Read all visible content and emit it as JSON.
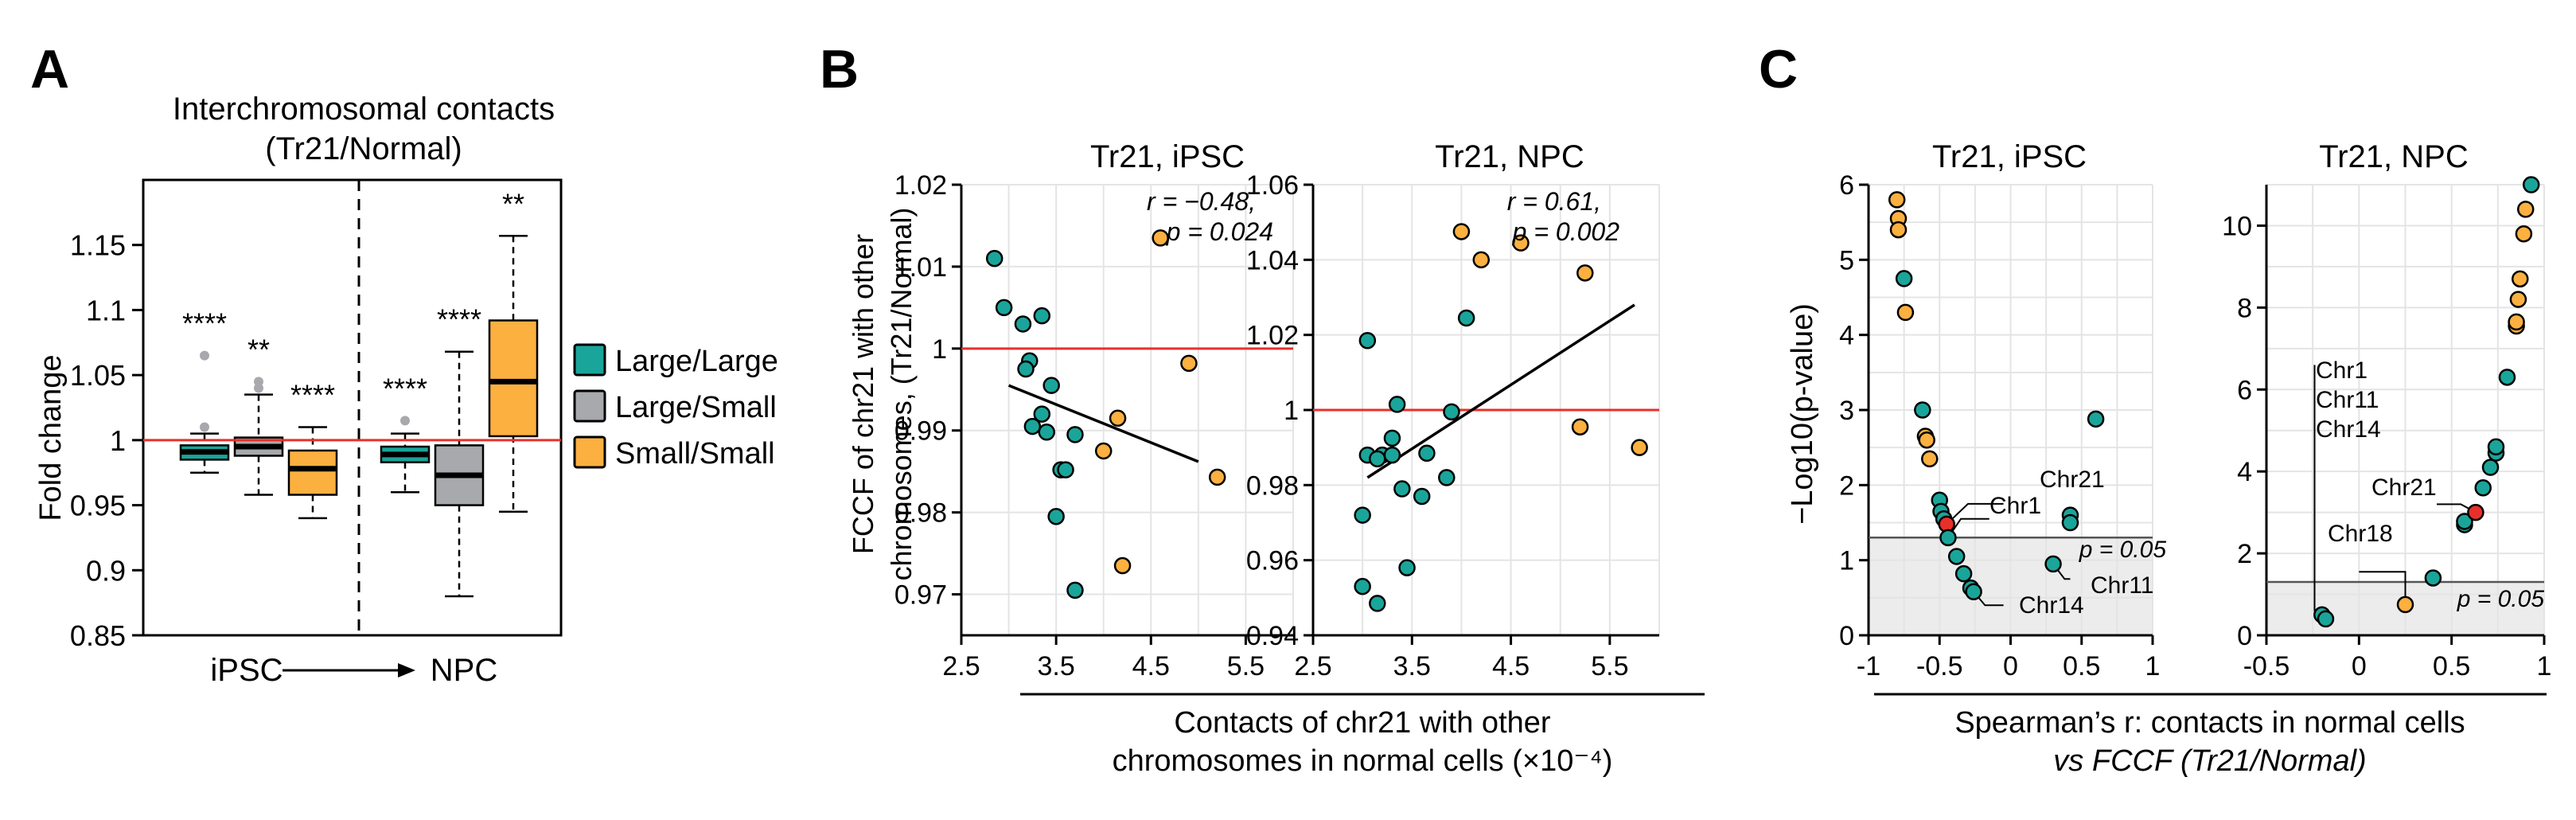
{
  "panels": {
    "a": "A",
    "b": "B",
    "c": "C"
  },
  "colors": {
    "large_large": "#1aa59a",
    "large_small": "#a7a9ac",
    "small_small": "#fbb040",
    "red": "#e8302a",
    "chr21_point": "#e8302a"
  },
  "chart_data": [
    {
      "type": "box",
      "title_line1": "Interchromosomal contacts",
      "title_line2": "(Tr21/Normal)",
      "ylabel": "Fold change",
      "ylim": [
        0.85,
        1.2
      ],
      "yticks": [
        "0.85",
        "0.9",
        "0.95",
        "1",
        "1.05",
        "1.1",
        "1.15"
      ],
      "reference_line": 1,
      "group_labels": {
        "left": "iPSC",
        "right": "NPC"
      },
      "legend": [
        "Large/Large",
        "Large/Small",
        "Small/Small"
      ],
      "boxes": [
        {
          "group": "iPSC",
          "series": "Large/Large",
          "min": 0.975,
          "q1": 0.985,
          "median": 0.991,
          "q3": 0.996,
          "max": 1.005,
          "outliers": [
            1.01,
            1.065
          ],
          "sig": "****"
        },
        {
          "group": "iPSC",
          "series": "Large/Small",
          "min": 0.958,
          "q1": 0.988,
          "median": 0.995,
          "q3": 1.002,
          "max": 1.035,
          "outliers": [
            1.04,
            1.045
          ],
          "sig": "**"
        },
        {
          "group": "iPSC",
          "series": "Small/Small",
          "min": 0.94,
          "q1": 0.958,
          "median": 0.978,
          "q3": 0.992,
          "max": 1.01,
          "outliers": [],
          "sig": "****"
        },
        {
          "group": "NPC",
          "series": "Large/Large",
          "min": 0.96,
          "q1": 0.983,
          "median": 0.989,
          "q3": 0.995,
          "max": 1.005,
          "outliers": [
            1.015
          ],
          "sig": "****"
        },
        {
          "group": "NPC",
          "series": "Large/Small",
          "min": 0.88,
          "q1": 0.95,
          "median": 0.973,
          "q3": 0.996,
          "max": 1.068,
          "outliers": [],
          "sig": "****"
        },
        {
          "group": "NPC",
          "series": "Small/Small",
          "min": 0.945,
          "q1": 1.003,
          "median": 1.045,
          "q3": 1.092,
          "max": 1.157,
          "outliers": [],
          "sig": "**"
        }
      ]
    },
    {
      "type": "scatter",
      "title": "Tr21, iPSC",
      "ylabel_line1": "FCCF of chr21 with other",
      "ylabel_line2": "chromosomes, (Tr21/Normal)",
      "xlim": [
        2.5,
        6.0
      ],
      "ylim": [
        0.965,
        1.02
      ],
      "xticks": [
        "2.5",
        "3.5",
        "4.5",
        "5.5"
      ],
      "yticks": [
        "0.97",
        "0.98",
        "0.99",
        "1",
        "1.01",
        "1.02"
      ],
      "reference_line": 1,
      "annotation_r": "r = −0.48,",
      "annotation_p": "p = 0.024",
      "fit": {
        "x1": 3.0,
        "y1": 0.9955,
        "x2": 5.0,
        "y2": 0.9862
      },
      "points": [
        {
          "x": 2.85,
          "y": 1.011,
          "g": "LL"
        },
        {
          "x": 2.95,
          "y": 1.005,
          "g": "LL"
        },
        {
          "x": 3.15,
          "y": 1.003,
          "g": "LL"
        },
        {
          "x": 3.35,
          "y": 1.004,
          "g": "LL"
        },
        {
          "x": 3.22,
          "y": 0.9985,
          "g": "LL"
        },
        {
          "x": 3.18,
          "y": 0.9975,
          "g": "LL"
        },
        {
          "x": 3.45,
          "y": 0.9955,
          "g": "LL"
        },
        {
          "x": 3.25,
          "y": 0.9905,
          "g": "LL"
        },
        {
          "x": 3.35,
          "y": 0.992,
          "g": "LL"
        },
        {
          "x": 3.4,
          "y": 0.9898,
          "g": "LL"
        },
        {
          "x": 3.7,
          "y": 0.9895,
          "g": "LL"
        },
        {
          "x": 3.55,
          "y": 0.9852,
          "g": "LL"
        },
        {
          "x": 3.6,
          "y": 0.9852,
          "g": "LL"
        },
        {
          "x": 3.5,
          "y": 0.9795,
          "g": "LL"
        },
        {
          "x": 3.7,
          "y": 0.9705,
          "g": "LL"
        },
        {
          "x": 4.6,
          "y": 1.0135,
          "g": "SS"
        },
        {
          "x": 4.9,
          "y": 0.9982,
          "g": "SS"
        },
        {
          "x": 4.15,
          "y": 0.9915,
          "g": "SS"
        },
        {
          "x": 4.0,
          "y": 0.9875,
          "g": "SS"
        },
        {
          "x": 5.2,
          "y": 0.9843,
          "g": "SS"
        },
        {
          "x": 4.2,
          "y": 0.9735,
          "g": "SS"
        }
      ]
    },
    {
      "type": "scatter",
      "title": "Tr21, NPC",
      "xlim": [
        2.5,
        6.0
      ],
      "ylim": [
        0.94,
        1.06
      ],
      "xticks": [
        "2.5",
        "3.5",
        "4.5",
        "5.5"
      ],
      "yticks": [
        "0.94",
        "0.96",
        "0.98",
        "1",
        "1.02",
        "1.04",
        "1.06"
      ],
      "reference_line": 1,
      "annotation_r": "r = 0.61,",
      "annotation_p": "p = 0.002",
      "fit": {
        "x1": 3.05,
        "y1": 0.982,
        "x2": 5.75,
        "y2": 1.028
      },
      "points": [
        {
          "x": 3.05,
          "y": 1.0185,
          "g": "LL"
        },
        {
          "x": 3.05,
          "y": 0.988,
          "g": "LL"
        },
        {
          "x": 3.2,
          "y": 0.988,
          "g": "LL"
        },
        {
          "x": 3.15,
          "y": 0.987,
          "g": "LL"
        },
        {
          "x": 3.3,
          "y": 0.988,
          "g": "LL"
        },
        {
          "x": 3.35,
          "y": 1.0015,
          "g": "LL"
        },
        {
          "x": 3.3,
          "y": 0.9925,
          "g": "LL"
        },
        {
          "x": 3.65,
          "y": 0.9885,
          "g": "LL"
        },
        {
          "x": 3.4,
          "y": 0.979,
          "g": "LL"
        },
        {
          "x": 3.85,
          "y": 0.982,
          "g": "LL"
        },
        {
          "x": 3.6,
          "y": 0.977,
          "g": "LL"
        },
        {
          "x": 3.0,
          "y": 0.972,
          "g": "LL"
        },
        {
          "x": 3.45,
          "y": 0.958,
          "g": "LL"
        },
        {
          "x": 3.0,
          "y": 0.953,
          "g": "LL"
        },
        {
          "x": 3.15,
          "y": 0.9485,
          "g": "LL"
        },
        {
          "x": 3.9,
          "y": 0.9995,
          "g": "LL"
        },
        {
          "x": 4.05,
          "y": 1.0245,
          "g": "LL"
        },
        {
          "x": 4.0,
          "y": 1.0475,
          "g": "SS"
        },
        {
          "x": 4.2,
          "y": 1.04,
          "g": "SS"
        },
        {
          "x": 4.6,
          "y": 1.0445,
          "g": "SS"
        },
        {
          "x": 5.25,
          "y": 1.0365,
          "g": "SS"
        },
        {
          "x": 5.2,
          "y": 0.9955,
          "g": "SS"
        },
        {
          "x": 5.8,
          "y": 0.99,
          "g": "SS"
        }
      ]
    },
    {
      "type": "scatter",
      "title": "Tr21, iPSC",
      "ylabel": "−Log10(p-value)",
      "xlim": [
        -1,
        1
      ],
      "ylim": [
        0,
        6
      ],
      "xticks": [
        "-1",
        "-0.5",
        "0",
        "0.5",
        "1"
      ],
      "yticks": [
        "0",
        "1",
        "2",
        "3",
        "4",
        "5",
        "6"
      ],
      "threshold": 1.301,
      "threshold_label": "p = 0.05",
      "labels": {
        "chr21": "Chr21",
        "chr1": "Chr1",
        "chr11": "Chr11",
        "chr14": "Chr14"
      },
      "points": [
        {
          "x": -0.8,
          "y": 5.8,
          "g": "SS"
        },
        {
          "x": -0.79,
          "y": 5.55,
          "g": "SS"
        },
        {
          "x": -0.79,
          "y": 5.4,
          "g": "SS"
        },
        {
          "x": -0.75,
          "y": 4.75,
          "g": "LL"
        },
        {
          "x": -0.74,
          "y": 4.3,
          "g": "SS"
        },
        {
          "x": -0.62,
          "y": 3.0,
          "g": "LL"
        },
        {
          "x": -0.6,
          "y": 2.65,
          "g": "SS"
        },
        {
          "x": -0.59,
          "y": 2.6,
          "g": "SS"
        },
        {
          "x": -0.57,
          "y": 2.35,
          "g": "SS"
        },
        {
          "x": -0.5,
          "y": 1.8,
          "g": "LL"
        },
        {
          "x": -0.49,
          "y": 1.65,
          "g": "LL"
        },
        {
          "x": -0.47,
          "y": 1.55,
          "g": "LL"
        },
        {
          "x": -0.45,
          "y": 1.48,
          "g": "R"
        },
        {
          "x": -0.44,
          "y": 1.3,
          "g": "LL"
        },
        {
          "x": -0.38,
          "y": 1.05,
          "g": "LL"
        },
        {
          "x": -0.33,
          "y": 0.82,
          "g": "LL"
        },
        {
          "x": -0.28,
          "y": 0.63,
          "g": "LL"
        },
        {
          "x": -0.26,
          "y": 0.58,
          "g": "LL"
        },
        {
          "x": 0.3,
          "y": 0.95,
          "g": "LL"
        },
        {
          "x": 0.42,
          "y": 1.6,
          "g": "LL"
        },
        {
          "x": 0.42,
          "y": 1.5,
          "g": "LL"
        },
        {
          "x": 0.6,
          "y": 2.88,
          "g": "LL"
        }
      ]
    },
    {
      "type": "scatter",
      "title": "Tr21, NPC",
      "xlim": [
        -0.5,
        1
      ],
      "ylim": [
        0,
        11
      ],
      "xticks": [
        "-0.5",
        "0",
        "0.5",
        "1"
      ],
      "yticks": [
        "0",
        "2",
        "4",
        "6",
        "8",
        "10"
      ],
      "threshold": 1.301,
      "threshold_label": "p = 0.05",
      "labels": {
        "group": [
          "Chr1",
          "Chr11",
          "Chr14"
        ],
        "chr21": "Chr21",
        "chr18": "Chr18"
      },
      "points": [
        {
          "x": -0.2,
          "y": 0.5,
          "g": "LL"
        },
        {
          "x": -0.18,
          "y": 0.4,
          "g": "LL"
        },
        {
          "x": 0.25,
          "y": 0.75,
          "g": "SS"
        },
        {
          "x": 0.4,
          "y": 1.4,
          "g": "LL"
        },
        {
          "x": 0.57,
          "y": 2.7,
          "g": "LL"
        },
        {
          "x": 0.57,
          "y": 2.78,
          "g": "LL"
        },
        {
          "x": 0.63,
          "y": 3.0,
          "g": "R"
        },
        {
          "x": 0.67,
          "y": 3.6,
          "g": "LL"
        },
        {
          "x": 0.71,
          "y": 4.1,
          "g": "LL"
        },
        {
          "x": 0.74,
          "y": 4.45,
          "g": "LL"
        },
        {
          "x": 0.74,
          "y": 4.6,
          "g": "LL"
        },
        {
          "x": 0.8,
          "y": 6.3,
          "g": "LL"
        },
        {
          "x": 0.85,
          "y": 7.55,
          "g": "SS"
        },
        {
          "x": 0.85,
          "y": 7.65,
          "g": "SS"
        },
        {
          "x": 0.86,
          "y": 8.2,
          "g": "SS"
        },
        {
          "x": 0.87,
          "y": 8.7,
          "g": "SS"
        },
        {
          "x": 0.89,
          "y": 9.8,
          "g": "SS"
        },
        {
          "x": 0.9,
          "y": 10.4,
          "g": "SS"
        },
        {
          "x": 0.93,
          "y": 11.0,
          "g": "LL"
        }
      ]
    }
  ],
  "panel_b_xlabel_line1": "Contacts of chr21 with other",
  "panel_b_xlabel_line2": "chromosomes in normal cells (×10⁻⁴)",
  "panel_c_xlabel_line1": "Spearman’s r: contacts in normal cells",
  "panel_c_xlabel_line2": "vs FCCF (Tr21/Normal)"
}
